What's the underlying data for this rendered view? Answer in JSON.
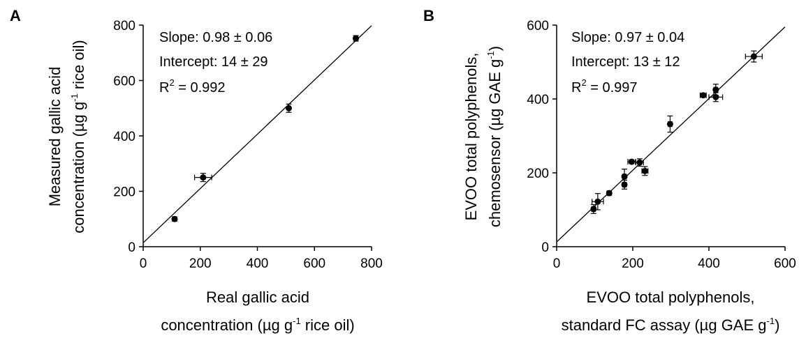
{
  "chart_data": [
    {
      "panel_label": "A",
      "type": "scatter",
      "xlabel_line1": "Real gallic acid",
      "xlabel_line2_pre": "concentration (µg g",
      "xlabel_sup": "-1",
      "xlabel_line2_post": " rice oil)",
      "ylabel_line1": "Measured gallic acid",
      "ylabel_line2_pre": "concentration (µg g",
      "ylabel_sup": "-1",
      "ylabel_line2_post": " rice oil)",
      "xlim": [
        0,
        800
      ],
      "ylim": [
        0,
        800
      ],
      "xticks": [
        0,
        200,
        400,
        600,
        800
      ],
      "yticks": [
        0,
        200,
        400,
        600,
        800
      ],
      "points": [
        {
          "x": 110,
          "y": 100,
          "xerr": 0,
          "yerr": 8
        },
        {
          "x": 210,
          "y": 250,
          "xerr": 30,
          "yerr": 15
        },
        {
          "x": 510,
          "y": 500,
          "xerr": 5,
          "yerr": 15
        },
        {
          "x": 745,
          "y": 752,
          "xerr": 5,
          "yerr": 10
        }
      ],
      "fit": {
        "slope": 0.98,
        "intercept": 14
      },
      "annotations": {
        "slope": "Slope: 0.98 ± 0.06",
        "intercept": "Intercept: 14 ± 29",
        "r2_pre": "R",
        "r2_sup": "2",
        "r2_post": " = 0.992"
      }
    },
    {
      "panel_label": "B",
      "type": "scatter",
      "xlabel_line1": "EVOO total polyphenols,",
      "xlabel_line2_pre": "standard FC assay (µg GAE g",
      "xlabel_sup": "-1",
      "xlabel_line2_post": ")",
      "ylabel_line1": "EVOO total polyphenols,",
      "ylabel_line2_pre": "chemosensor (µg GAE g",
      "ylabel_sup": "-1",
      "ylabel_line2_post": ")",
      "xlim": [
        0,
        600
      ],
      "ylim": [
        0,
        600
      ],
      "xticks": [
        0,
        200,
        400,
        600
      ],
      "yticks": [
        0,
        200,
        400,
        600
      ],
      "points": [
        {
          "x": 97,
          "y": 102,
          "xerr": 5,
          "yerr": 12
        },
        {
          "x": 108,
          "y": 122,
          "xerr": 15,
          "yerr": 22
        },
        {
          "x": 138,
          "y": 145,
          "xerr": 5,
          "yerr": 5
        },
        {
          "x": 178,
          "y": 168,
          "xerr": 5,
          "yerr": 12
        },
        {
          "x": 178,
          "y": 190,
          "xerr": 5,
          "yerr": 20
        },
        {
          "x": 197,
          "y": 230,
          "xerr": 10,
          "yerr": 5
        },
        {
          "x": 218,
          "y": 228,
          "xerr": 10,
          "yerr": 10
        },
        {
          "x": 232,
          "y": 205,
          "xerr": 8,
          "yerr": 12
        },
        {
          "x": 298,
          "y": 332,
          "xerr": 5,
          "yerr": 22
        },
        {
          "x": 385,
          "y": 410,
          "xerr": 8,
          "yerr": 5
        },
        {
          "x": 418,
          "y": 425,
          "xerr": 5,
          "yerr": 15
        },
        {
          "x": 418,
          "y": 405,
          "xerr": 18,
          "yerr": 12
        },
        {
          "x": 518,
          "y": 515,
          "xerr": 22,
          "yerr": 15
        }
      ],
      "fit": {
        "slope": 0.97,
        "intercept": 13
      },
      "annotations": {
        "slope": "Slope: 0.97 ± 0.04",
        "intercept": "Intercept: 13 ± 12",
        "r2_pre": "R",
        "r2_sup": "2",
        "r2_post": " = 0.997"
      }
    }
  ]
}
